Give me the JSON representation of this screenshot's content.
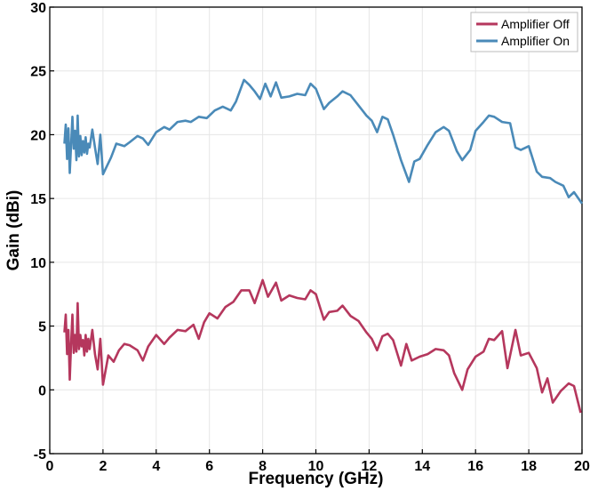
{
  "chart_data": {
    "type": "line",
    "xlabel": "Frequency (GHz)",
    "ylabel": "Gain (dBi)",
    "xlim": [
      0,
      20
    ],
    "ylim": [
      -5,
      30
    ],
    "x_ticks": [
      0,
      2,
      4,
      6,
      8,
      10,
      12,
      14,
      16,
      18,
      20
    ],
    "y_ticks": [
      -5,
      0,
      5,
      10,
      15,
      20,
      25,
      30
    ],
    "grid": true,
    "legend_position": "top-right",
    "series": [
      {
        "name": "Amplifier Off",
        "color": "#b5375d",
        "points": [
          [
            0.55,
            4.5
          ],
          [
            0.6,
            5.9
          ],
          [
            0.65,
            2.8
          ],
          [
            0.7,
            4.7
          ],
          [
            0.75,
            0.8
          ],
          [
            0.8,
            3.6
          ],
          [
            0.85,
            5.9
          ],
          [
            0.9,
            2.9
          ],
          [
            0.95,
            4.3
          ],
          [
            1.0,
            3.0
          ],
          [
            1.05,
            6.8
          ],
          [
            1.1,
            3.2
          ],
          [
            1.15,
            4.3
          ],
          [
            1.2,
            3.4
          ],
          [
            1.25,
            3.9
          ],
          [
            1.3,
            2.7
          ],
          [
            1.35,
            4.3
          ],
          [
            1.4,
            3.0
          ],
          [
            1.45,
            4.0
          ],
          [
            1.5,
            3.2
          ],
          [
            1.6,
            4.7
          ],
          [
            1.7,
            2.8
          ],
          [
            1.8,
            1.6
          ],
          [
            1.9,
            4.0
          ],
          [
            2.0,
            0.4
          ],
          [
            2.2,
            2.7
          ],
          [
            2.4,
            2.2
          ],
          [
            2.6,
            3.1
          ],
          [
            2.8,
            3.6
          ],
          [
            3.0,
            3.5
          ],
          [
            3.3,
            3.1
          ],
          [
            3.5,
            2.3
          ],
          [
            3.7,
            3.4
          ],
          [
            4.0,
            4.3
          ],
          [
            4.3,
            3.6
          ],
          [
            4.5,
            4.1
          ],
          [
            4.8,
            4.7
          ],
          [
            5.1,
            4.6
          ],
          [
            5.4,
            5.1
          ],
          [
            5.6,
            4.0
          ],
          [
            5.8,
            5.3
          ],
          [
            6.0,
            6.0
          ],
          [
            6.3,
            5.6
          ],
          [
            6.6,
            6.5
          ],
          [
            6.9,
            6.9
          ],
          [
            7.2,
            7.8
          ],
          [
            7.5,
            7.8
          ],
          [
            7.7,
            6.8
          ],
          [
            8.0,
            8.6
          ],
          [
            8.2,
            7.3
          ],
          [
            8.5,
            8.4
          ],
          [
            8.7,
            7.0
          ],
          [
            9.0,
            7.4
          ],
          [
            9.3,
            7.2
          ],
          [
            9.6,
            7.1
          ],
          [
            9.8,
            7.8
          ],
          [
            10.0,
            7.5
          ],
          [
            10.3,
            5.5
          ],
          [
            10.5,
            6.1
          ],
          [
            10.8,
            6.2
          ],
          [
            11.0,
            6.6
          ],
          [
            11.3,
            5.8
          ],
          [
            11.6,
            5.4
          ],
          [
            11.9,
            4.5
          ],
          [
            12.1,
            4.0
          ],
          [
            12.3,
            3.1
          ],
          [
            12.5,
            4.2
          ],
          [
            12.7,
            4.4
          ],
          [
            12.9,
            3.9
          ],
          [
            13.2,
            1.9
          ],
          [
            13.4,
            3.6
          ],
          [
            13.6,
            2.3
          ],
          [
            13.9,
            2.6
          ],
          [
            14.2,
            2.8
          ],
          [
            14.5,
            3.2
          ],
          [
            14.8,
            3.1
          ],
          [
            15.0,
            2.7
          ],
          [
            15.2,
            1.3
          ],
          [
            15.5,
            0.0
          ],
          [
            15.7,
            1.6
          ],
          [
            16.0,
            2.6
          ],
          [
            16.3,
            3.0
          ],
          [
            16.5,
            4.0
          ],
          [
            16.7,
            3.9
          ],
          [
            17.0,
            4.6
          ],
          [
            17.2,
            1.7
          ],
          [
            17.5,
            4.7
          ],
          [
            17.7,
            2.7
          ],
          [
            18.0,
            2.9
          ],
          [
            18.3,
            1.7
          ],
          [
            18.5,
            -0.2
          ],
          [
            18.7,
            0.9
          ],
          [
            18.9,
            -1.0
          ],
          [
            19.2,
            -0.1
          ],
          [
            19.5,
            0.5
          ],
          [
            19.7,
            0.3
          ],
          [
            19.95,
            -1.8
          ]
        ]
      },
      {
        "name": "Amplifier On",
        "color": "#4a8ab8",
        "points": [
          [
            0.55,
            19.3
          ],
          [
            0.6,
            20.8
          ],
          [
            0.65,
            18.1
          ],
          [
            0.7,
            20.5
          ],
          [
            0.75,
            17.0
          ],
          [
            0.8,
            19.2
          ],
          [
            0.85,
            21.4
          ],
          [
            0.9,
            18.9
          ],
          [
            0.95,
            20.3
          ],
          [
            1.0,
            18.0
          ],
          [
            1.05,
            21.5
          ],
          [
            1.1,
            18.3
          ],
          [
            1.15,
            19.9
          ],
          [
            1.2,
            18.4
          ],
          [
            1.25,
            19.5
          ],
          [
            1.3,
            18.6
          ],
          [
            1.35,
            19.8
          ],
          [
            1.4,
            18.5
          ],
          [
            1.45,
            19.3
          ],
          [
            1.5,
            19.0
          ],
          [
            1.6,
            20.4
          ],
          [
            1.7,
            19.0
          ],
          [
            1.8,
            17.7
          ],
          [
            1.9,
            20.0
          ],
          [
            2.0,
            16.9
          ],
          [
            2.3,
            18.2
          ],
          [
            2.5,
            19.3
          ],
          [
            2.8,
            19.1
          ],
          [
            3.0,
            19.4
          ],
          [
            3.3,
            19.9
          ],
          [
            3.5,
            19.7
          ],
          [
            3.7,
            19.2
          ],
          [
            4.0,
            20.2
          ],
          [
            4.3,
            20.6
          ],
          [
            4.5,
            20.4
          ],
          [
            4.8,
            21.0
          ],
          [
            5.1,
            21.1
          ],
          [
            5.3,
            21.0
          ],
          [
            5.6,
            21.4
          ],
          [
            5.9,
            21.3
          ],
          [
            6.2,
            21.9
          ],
          [
            6.5,
            22.2
          ],
          [
            6.8,
            21.9
          ],
          [
            7.0,
            22.6
          ],
          [
            7.3,
            24.3
          ],
          [
            7.5,
            23.9
          ],
          [
            7.7,
            23.4
          ],
          [
            7.9,
            22.8
          ],
          [
            8.1,
            24.0
          ],
          [
            8.3,
            23.0
          ],
          [
            8.5,
            24.1
          ],
          [
            8.7,
            22.9
          ],
          [
            9.0,
            23.0
          ],
          [
            9.3,
            23.2
          ],
          [
            9.6,
            23.1
          ],
          [
            9.8,
            24.0
          ],
          [
            10.0,
            23.6
          ],
          [
            10.3,
            22.0
          ],
          [
            10.5,
            22.5
          ],
          [
            10.8,
            23.0
          ],
          [
            11.0,
            23.4
          ],
          [
            11.3,
            23.1
          ],
          [
            11.6,
            22.3
          ],
          [
            11.9,
            21.5
          ],
          [
            12.1,
            21.1
          ],
          [
            12.3,
            20.2
          ],
          [
            12.5,
            21.4
          ],
          [
            12.7,
            21.2
          ],
          [
            12.9,
            20.0
          ],
          [
            13.2,
            18.0
          ],
          [
            13.5,
            16.3
          ],
          [
            13.7,
            17.9
          ],
          [
            13.9,
            18.1
          ],
          [
            14.2,
            19.2
          ],
          [
            14.5,
            20.2
          ],
          [
            14.8,
            20.6
          ],
          [
            15.0,
            20.3
          ],
          [
            15.3,
            18.7
          ],
          [
            15.5,
            18.0
          ],
          [
            15.8,
            18.8
          ],
          [
            16.0,
            20.3
          ],
          [
            16.3,
            21.0
          ],
          [
            16.5,
            21.5
          ],
          [
            16.7,
            21.4
          ],
          [
            17.0,
            21.0
          ],
          [
            17.3,
            20.9
          ],
          [
            17.5,
            19.0
          ],
          [
            17.7,
            18.8
          ],
          [
            18.0,
            19.1
          ],
          [
            18.3,
            17.1
          ],
          [
            18.5,
            16.7
          ],
          [
            18.8,
            16.6
          ],
          [
            19.0,
            16.3
          ],
          [
            19.3,
            16.0
          ],
          [
            19.5,
            15.1
          ],
          [
            19.7,
            15.5
          ],
          [
            20.0,
            14.6
          ]
        ]
      }
    ]
  }
}
